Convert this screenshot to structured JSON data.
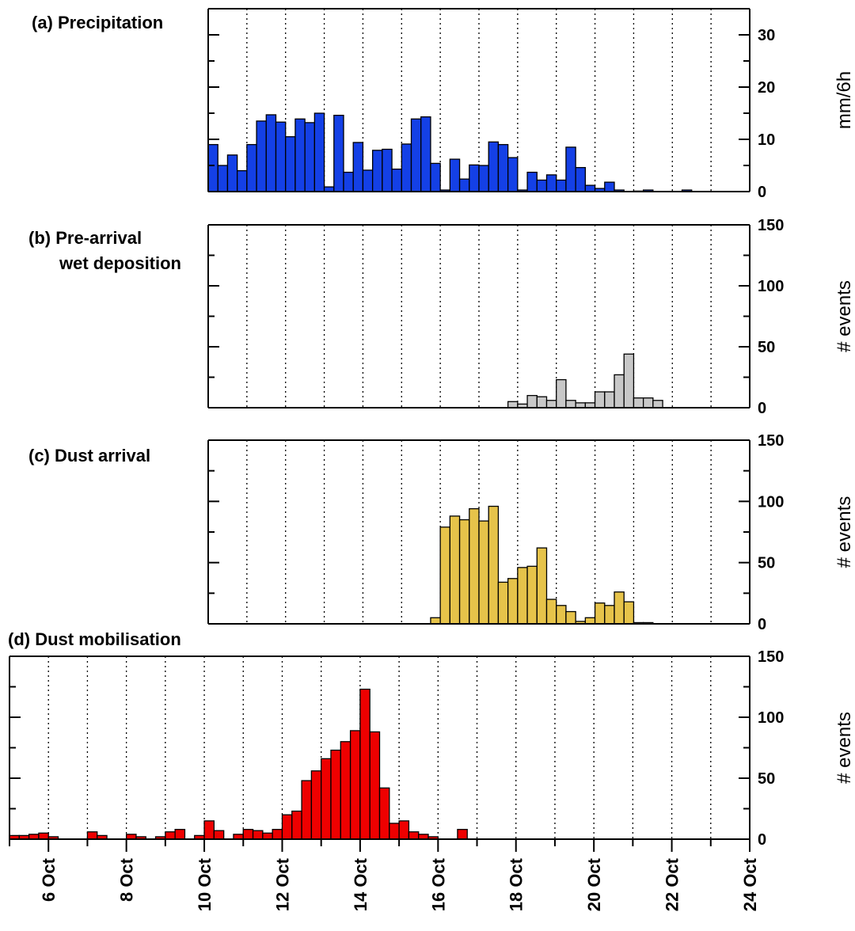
{
  "chart_data": [
    {
      "type": "bar",
      "title": "(a) Precipitation",
      "ylabel": "mm/6h",
      "ylim": [
        0,
        35
      ],
      "yticks": [
        0,
        10,
        20,
        30
      ],
      "ytick_labels": [
        "0",
        "10",
        "20",
        "30"
      ],
      "xlim": [
        "2015-10-07T00:00",
        "2015-10-21T00:00"
      ],
      "bar_width_hours": 6,
      "grid": "vertical-dotted-daily",
      "color": "#1440e6",
      "x": [
        "10-07 00",
        "10-07 06",
        "10-07 12",
        "10-07 18",
        "10-08 00",
        "10-08 06",
        "10-08 12",
        "10-08 18",
        "10-09 00",
        "10-09 06",
        "10-09 12",
        "10-09 18",
        "10-10 00",
        "10-10 06",
        "10-10 12",
        "10-10 18",
        "10-11 00",
        "10-11 06",
        "10-11 12",
        "10-11 18",
        "10-12 00",
        "10-12 06",
        "10-12 12",
        "10-12 18",
        "10-13 00",
        "10-13 06",
        "10-13 12",
        "10-13 18",
        "10-14 00",
        "10-14 06",
        "10-14 12",
        "10-14 18",
        "10-15 00",
        "10-15 06",
        "10-15 12",
        "10-15 18",
        "10-16 00",
        "10-16 06",
        "10-16 12",
        "10-16 18",
        "10-17 00",
        "10-17 06",
        "10-17 12",
        "10-17 18",
        "10-18 00",
        "10-18 06",
        "10-18 12",
        "10-18 18",
        "10-19 00",
        "10-19 06",
        "10-19 12",
        "10-19 18",
        "10-20 00",
        "10-20 06",
        "10-20 12",
        "10-20 18"
      ],
      "values": [
        9,
        5,
        7,
        4,
        9,
        13.5,
        14.7,
        13.3,
        10.5,
        13.9,
        13.2,
        15,
        0.9,
        14.6,
        3.7,
        9.4,
        4.1,
        7.9,
        8.1,
        4.3,
        9.1,
        13.9,
        14.3,
        5.4,
        0.3,
        6.2,
        2.4,
        5.1,
        5.0,
        9.5,
        9.0,
        6.5,
        0.3,
        3.7,
        2.2,
        3.2,
        2.2,
        8.5,
        4.6,
        1.2,
        0.6,
        1.8,
        0.3,
        0,
        0.1,
        0.3,
        0,
        0,
        0,
        0.3,
        0,
        0,
        0,
        0,
        0,
        0
      ]
    },
    {
      "type": "bar",
      "title": "(b) Pre-arrival wet deposition",
      "title_lines": [
        "(b) Pre-arrival",
        "wet deposition"
      ],
      "ylabel": "# events",
      "ylim": [
        0,
        150
      ],
      "yticks": [
        0,
        50,
        100,
        150
      ],
      "ytick_labels": [
        "0",
        "50",
        "100",
        "150"
      ],
      "xlim": [
        "2015-10-07T00:00",
        "2015-10-21T00:00"
      ],
      "bar_width_hours": 6,
      "grid": "vertical-dotted-daily",
      "color": "#c8c8c8",
      "x": [
        "10-14 18",
        "10-15 00",
        "10-15 06",
        "10-15 12",
        "10-15 18",
        "10-16 00",
        "10-16 06",
        "10-16 12",
        "10-16 18",
        "10-17 00",
        "10-17 06",
        "10-17 12",
        "10-17 18",
        "10-18 00",
        "10-18 06",
        "10-18 12"
      ],
      "values": [
        5,
        3,
        10,
        9,
        6,
        23,
        6,
        4,
        4,
        13,
        13,
        27,
        44,
        8,
        8,
        6
      ]
    },
    {
      "type": "bar",
      "title": "(c) Dust arrival",
      "ylabel": "# events",
      "ylim": [
        0,
        150
      ],
      "yticks": [
        0,
        50,
        100,
        150
      ],
      "ytick_labels": [
        "0",
        "50",
        "100",
        "150"
      ],
      "xlim": [
        "2015-10-07T00:00",
        "2015-10-21T00:00"
      ],
      "bar_width_hours": 6,
      "grid": "vertical-dotted-daily",
      "color": "#e6c34a",
      "x": [
        "10-12 18",
        "10-13 00",
        "10-13 06",
        "10-13 12",
        "10-13 18",
        "10-14 00",
        "10-14 06",
        "10-14 12",
        "10-14 18",
        "10-15 00",
        "10-15 06",
        "10-15 12",
        "10-15 18",
        "10-16 00",
        "10-16 06",
        "10-16 12",
        "10-16 18",
        "10-17 00",
        "10-17 06",
        "10-17 12",
        "10-17 18",
        "10-18 00",
        "10-18 06"
      ],
      "values": [
        5,
        79,
        88,
        85,
        94,
        84,
        96,
        34,
        37,
        46,
        47,
        62,
        20,
        15,
        10,
        2,
        5,
        17,
        15,
        26,
        18,
        1,
        1
      ]
    },
    {
      "type": "bar",
      "title": "(d) Dust mobilisation",
      "ylabel": "# events",
      "ylim": [
        0,
        150
      ],
      "yticks": [
        0,
        50,
        100,
        150
      ],
      "ytick_labels": [
        "0",
        "50",
        "100",
        "150"
      ],
      "xlim": [
        "2015-10-05T00:00",
        "2015-10-24T00:00"
      ],
      "xticks": [
        "6 Oct",
        "8 Oct",
        "10 Oct",
        "12 Oct",
        "14 Oct",
        "16 Oct",
        "18 Oct",
        "20 Oct",
        "22 Oct",
        "24 Oct"
      ],
      "bar_width_hours": 6,
      "grid": "vertical-dotted-daily",
      "color": "#ee0000",
      "x": [
        "10-05 00",
        "10-05 06",
        "10-05 12",
        "10-05 18",
        "10-06 00",
        "10-06 06",
        "10-06 12",
        "10-06 18",
        "10-07 00",
        "10-07 06",
        "10-07 12",
        "10-07 18",
        "10-08 00",
        "10-08 06",
        "10-08 12",
        "10-08 18",
        "10-09 00",
        "10-09 06",
        "10-09 12",
        "10-09 18",
        "10-10 00",
        "10-10 06",
        "10-10 12",
        "10-10 18",
        "10-11 00",
        "10-11 06",
        "10-11 12",
        "10-11 18",
        "10-12 00",
        "10-12 06",
        "10-12 12",
        "10-12 18",
        "10-13 00",
        "10-13 06",
        "10-13 12",
        "10-13 18",
        "10-14 00",
        "10-14 06",
        "10-14 12",
        "10-14 18",
        "10-15 00",
        "10-15 06",
        "10-15 12",
        "10-15 18",
        "10-16 00",
        "10-16 06",
        "10-16 12",
        "10-16 18"
      ],
      "values": [
        3,
        3,
        4,
        5,
        2,
        0,
        0,
        0,
        6,
        3,
        0,
        0,
        4,
        2,
        0,
        2,
        6,
        8,
        0,
        3,
        15,
        7,
        0,
        4,
        8,
        7,
        5,
        8,
        20,
        23,
        48,
        56,
        66,
        73,
        80,
        89,
        123,
        88,
        42,
        13,
        15,
        6,
        4,
        2,
        0,
        0,
        8,
        0
      ]
    }
  ]
}
